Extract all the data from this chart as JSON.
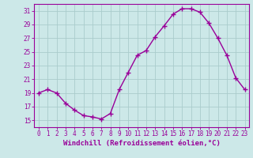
{
  "x": [
    0,
    1,
    2,
    3,
    4,
    5,
    6,
    7,
    8,
    9,
    10,
    11,
    12,
    13,
    14,
    15,
    16,
    17,
    18,
    19,
    20,
    21,
    22,
    23
  ],
  "y": [
    19.0,
    19.5,
    19.0,
    17.5,
    16.5,
    15.7,
    15.5,
    15.2,
    16.0,
    19.5,
    22.0,
    24.5,
    25.2,
    27.2,
    28.8,
    30.5,
    31.3,
    31.3,
    30.8,
    29.2,
    27.0,
    24.5,
    21.2,
    19.5
  ],
  "line_color": "#990099",
  "marker": "+",
  "markersize": 4,
  "linewidth": 1.0,
  "bg_color": "#cce8e8",
  "grid_color": "#aacccc",
  "xlabel": "Windchill (Refroidissement éolien,°C)",
  "ylabel": "",
  "xlim": [
    -0.5,
    23.5
  ],
  "ylim": [
    14.0,
    32.0
  ],
  "yticks": [
    15,
    17,
    19,
    21,
    23,
    25,
    27,
    29,
    31
  ],
  "xticks": [
    0,
    1,
    2,
    3,
    4,
    5,
    6,
    7,
    8,
    9,
    10,
    11,
    12,
    13,
    14,
    15,
    16,
    17,
    18,
    19,
    20,
    21,
    22,
    23
  ],
  "tick_color": "#990099",
  "label_color": "#990099",
  "tick_fontsize": 5.5,
  "xlabel_fontsize": 6.5,
  "spine_color": "#990099"
}
